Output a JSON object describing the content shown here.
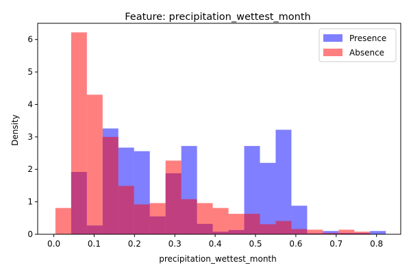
{
  "chart_data": {
    "type": "histogram",
    "title": "Feature: precipitation_wettest_month",
    "xlabel": "precipitation_wettest_month",
    "ylabel": "Density",
    "xlim": [
      -0.04,
      0.86
    ],
    "ylim": [
      0,
      6.5
    ],
    "xticks": [
      0.0,
      0.1,
      0.2,
      0.3,
      0.4,
      0.5,
      0.6,
      0.7,
      0.8
    ],
    "yticks": [
      0,
      1,
      2,
      3,
      4,
      5,
      6
    ],
    "grid": false,
    "legend_position": "top-right",
    "series": [
      {
        "name": "Presence",
        "color": "#0000ff",
        "opacity": 0.5,
        "bin_edges": [
          0.043,
          0.082,
          0.121,
          0.16,
          0.199,
          0.238,
          0.277,
          0.316,
          0.355,
          0.394,
          0.433,
          0.472,
          0.511,
          0.55,
          0.589,
          0.628,
          0.667,
          0.706,
          0.745,
          0.784,
          0.823
        ],
        "values": [
          1.92,
          0.27,
          3.26,
          2.67,
          2.56,
          0.55,
          1.88,
          2.72,
          0.32,
          0.08,
          0.13,
          2.72,
          2.2,
          3.22,
          0.88,
          0.03,
          0.1,
          0.04,
          0.04,
          0.1
        ]
      },
      {
        "name": "Absence",
        "color": "#ff0000",
        "opacity": 0.5,
        "bin_edges": [
          0.004,
          0.043,
          0.082,
          0.121,
          0.16,
          0.199,
          0.238,
          0.277,
          0.316,
          0.355,
          0.394,
          0.433,
          0.472,
          0.511,
          0.55,
          0.589,
          0.628,
          0.667,
          0.706,
          0.745,
          0.784
        ],
        "values": [
          0.81,
          6.22,
          4.3,
          3.0,
          1.49,
          0.92,
          0.96,
          2.27,
          1.08,
          0.96,
          0.81,
          0.63,
          0.63,
          0.31,
          0.41,
          0.16,
          0.14,
          0.04,
          0.14,
          0.08
        ]
      }
    ]
  }
}
